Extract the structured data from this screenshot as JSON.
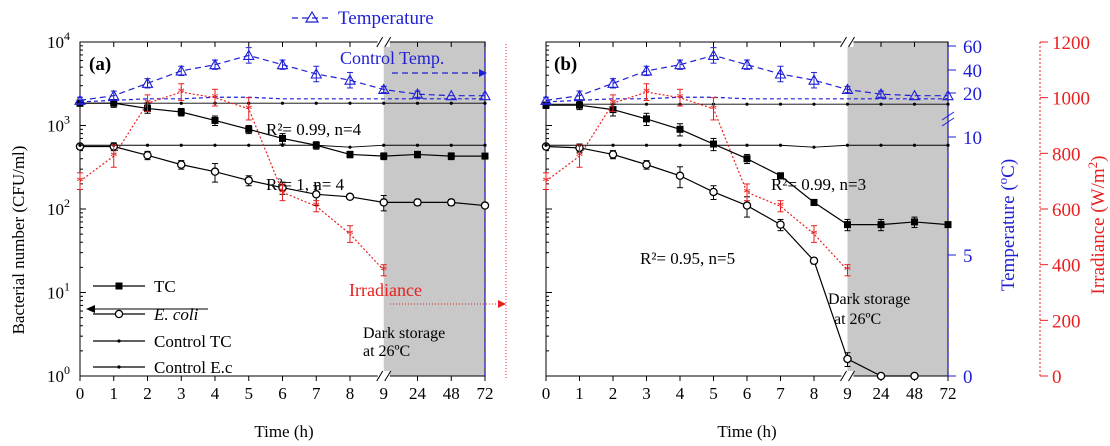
{
  "figure": {
    "top_legend": "Temperature",
    "x_label": "Time (h)",
    "colors": {
      "black": "#000000",
      "temperature": "#1f1fd6",
      "irradiance": "#e8201f",
      "dark_band": "#c8c8c8"
    }
  },
  "chart_data": [
    {
      "type": "line",
      "panel_label": "(a)",
      "x_categories": [
        "0",
        "1",
        "2",
        "3",
        "4",
        "5",
        "6",
        "7",
        "8",
        "9",
        "24",
        "48",
        "72"
      ],
      "y_axis": {
        "label": "Bacterial number (CFU/ml)",
        "scale": "log",
        "ylim": [
          1,
          10000
        ],
        "ticks": [
          "10^0",
          "10^1",
          "10^2",
          "10^3",
          "10^4"
        ]
      },
      "series": [
        {
          "name": "TC",
          "axis": "left",
          "marker": "square",
          "values": [
            1850,
            1850,
            1600,
            1450,
            1150,
            900,
            700,
            580,
            450,
            430,
            450,
            430,
            430
          ],
          "errors": [
            150,
            200,
            200,
            150,
            150,
            100,
            100,
            60,
            40,
            40,
            40,
            40,
            0
          ]
        },
        {
          "name": "E. coli",
          "axis": "left",
          "marker": "circle",
          "values": [
            560,
            560,
            440,
            340,
            280,
            220,
            180,
            150,
            140,
            120,
            120,
            120,
            110
          ],
          "errors": [
            40,
            60,
            50,
            40,
            70,
            30,
            30,
            40,
            10,
            25,
            10,
            10,
            0
          ]
        },
        {
          "name": "Control TC",
          "axis": "left",
          "marker": "dot",
          "values": [
            1850,
            1850,
            1850,
            1850,
            1850,
            1850,
            1850,
            1850,
            1850,
            1850,
            1850,
            1850,
            1850
          ]
        },
        {
          "name": "Control E.c",
          "axis": "left",
          "marker": "dot",
          "values": [
            580,
            580,
            580,
            580,
            580,
            580,
            580,
            580,
            550,
            580,
            580,
            580,
            580
          ]
        },
        {
          "name": "Temperature",
          "axis": "temperature",
          "marker": "triangle",
          "values": [
            23,
            26,
            34,
            42,
            46,
            52,
            46,
            40,
            36,
            30,
            27,
            26,
            26
          ],
          "errors": [
            2,
            3,
            3,
            3,
            3,
            5,
            3,
            5,
            5,
            2,
            2,
            0,
            0
          ]
        },
        {
          "name": "Control Temp.",
          "axis": "temperature",
          "marker": "none",
          "values": [
            22,
            23,
            24,
            24,
            25,
            25,
            24,
            24,
            24,
            24,
            24,
            24,
            24
          ]
        },
        {
          "name": "Irradiance",
          "axis": "irradiance",
          "marker": "star",
          "values": [
            700,
            790,
            980,
            1020,
            1000,
            960,
            660,
            610,
            510,
            380
          ],
          "errors": [
            30,
            40,
            30,
            30,
            30,
            40,
            30,
            20,
            30,
            20
          ]
        }
      ],
      "annotations": [
        "R²= 0.99, n=4",
        "R²= 1, n= 4",
        "Control Temp.",
        "Irradiance",
        "Dark storage",
        "at 26ºC"
      ],
      "dark_region": {
        "from": "9",
        "to": "72"
      },
      "legend": {
        "entries": [
          "TC",
          "E. coli",
          "Control TC",
          "Control E.c"
        ],
        "placement": "center-left"
      }
    },
    {
      "type": "line",
      "panel_label": "(b)",
      "x_categories": [
        "0",
        "1",
        "2",
        "3",
        "4",
        "5",
        "6",
        "7",
        "8",
        "9",
        "24",
        "48",
        "72"
      ],
      "series": [
        {
          "name": "TC",
          "axis": "left",
          "marker": "square",
          "values": [
            1750,
            1750,
            1550,
            1200,
            900,
            600,
            400,
            250,
            120,
            65,
            65,
            70,
            65
          ],
          "errors": [
            150,
            200,
            250,
            200,
            150,
            100,
            50,
            20,
            10,
            10,
            10,
            10,
            0
          ]
        },
        {
          "name": "E. coli",
          "axis": "left",
          "marker": "circle",
          "values": [
            560,
            540,
            450,
            340,
            250,
            160,
            110,
            65,
            24,
            1.6,
            1,
            1,
            null
          ],
          "errors": [
            40,
            60,
            50,
            40,
            70,
            30,
            30,
            10,
            2,
            0.3,
            0,
            0,
            0
          ]
        },
        {
          "name": "Control TC",
          "axis": "left",
          "marker": "dot",
          "values": [
            1800,
            1800,
            1800,
            1800,
            1800,
            1800,
            1800,
            1800,
            1800,
            1800,
            1800,
            1800,
            1800
          ]
        },
        {
          "name": "Control E.c",
          "axis": "left",
          "marker": "dot",
          "values": [
            580,
            580,
            580,
            580,
            580,
            580,
            580,
            580,
            550,
            580,
            580,
            580,
            580
          ]
        },
        {
          "name": "Temperature",
          "axis": "temperature",
          "marker": "triangle",
          "values": [
            23,
            26,
            34,
            42,
            46,
            52,
            46,
            40,
            36,
            30,
            27,
            26,
            26
          ],
          "errors": [
            2,
            3,
            3,
            3,
            3,
            5,
            3,
            5,
            5,
            2,
            2,
            0,
            0
          ]
        },
        {
          "name": "Control Temp.",
          "axis": "temperature",
          "marker": "none",
          "values": [
            22,
            23,
            24,
            24,
            25,
            25,
            24,
            24,
            24,
            24,
            24,
            24,
            24
          ]
        },
        {
          "name": "Irradiance",
          "axis": "irradiance",
          "marker": "star",
          "values": [
            700,
            790,
            980,
            1020,
            1000,
            960,
            660,
            610,
            510,
            380
          ],
          "errors": [
            30,
            40,
            30,
            30,
            30,
            40,
            30,
            20,
            30,
            20
          ]
        }
      ],
      "temperature_axis": {
        "label": "Temperature (°C)",
        "scale": "broken",
        "ticks": [
          "0",
          "5",
          "10",
          "20",
          "40",
          "60"
        ]
      },
      "irradiance_axis": {
        "label": "Irradiance (W/m²)",
        "ylim": [
          0,
          1200
        ],
        "ticks": [
          "0",
          "200",
          "400",
          "600",
          "800",
          "1000",
          "1200"
        ]
      },
      "annotations": [
        "R²= 0.99, n=3",
        "R²= 0.95, n=5",
        "Dark storage",
        "at 26ºC"
      ],
      "dark_region": {
        "from": "9",
        "to": "72"
      }
    }
  ]
}
